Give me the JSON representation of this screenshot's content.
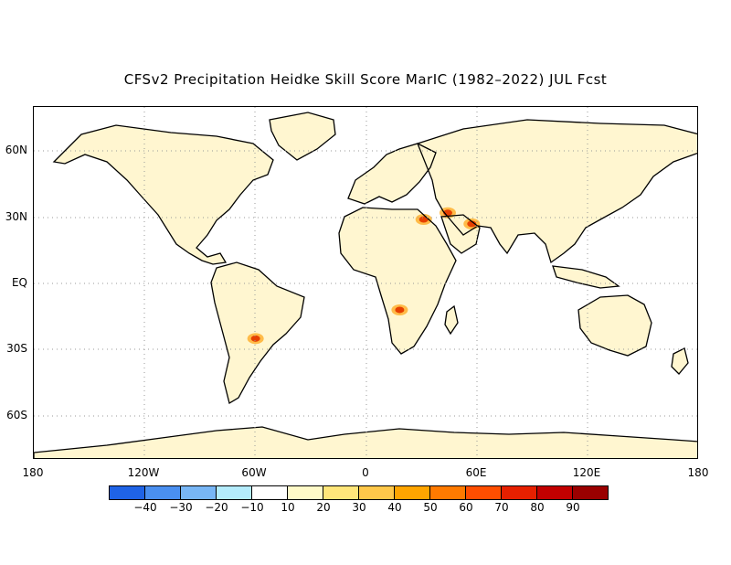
{
  "title": "CFSv2 Precipitation Heidke Skill Score MarIC (1982–2022) JUL Fcst",
  "lat_labels": [
    "60N",
    "30N",
    "EQ",
    "30S",
    "60S"
  ],
  "lon_labels": [
    "180",
    "120W",
    "60W",
    "0",
    "60E",
    "120E",
    "180"
  ],
  "colorbar": {
    "colors": [
      "#1f63e6",
      "#4a8ff0",
      "#78b6f5",
      "#b4ecfc",
      "#ffffff",
      "#fffac8",
      "#ffe67a",
      "#ffc84a",
      "#ffa500",
      "#ff7a00",
      "#ff4e00",
      "#e62000",
      "#c20000",
      "#9a0000"
    ],
    "labels": [
      "−40",
      "−30",
      "−20",
      "−10",
      "10",
      "20",
      "30",
      "40",
      "50",
      "60",
      "70",
      "80",
      "90"
    ]
  },
  "map": {
    "graticule": "dotted grid every 30°",
    "hotspot_color": "#e64000",
    "hotspots": [
      {
        "name": "Nile delta / Levant",
        "lon": 31,
        "lat": 29
      },
      {
        "name": "Iraq",
        "lon": 44,
        "lat": 32
      },
      {
        "name": "Iran / Gulf",
        "lon": 57,
        "lat": 27
      },
      {
        "name": "Angola / southern Congo",
        "lon": 18,
        "lat": -12
      },
      {
        "name": "Gran Chaco",
        "lon": -60,
        "lat": -25
      }
    ]
  }
}
